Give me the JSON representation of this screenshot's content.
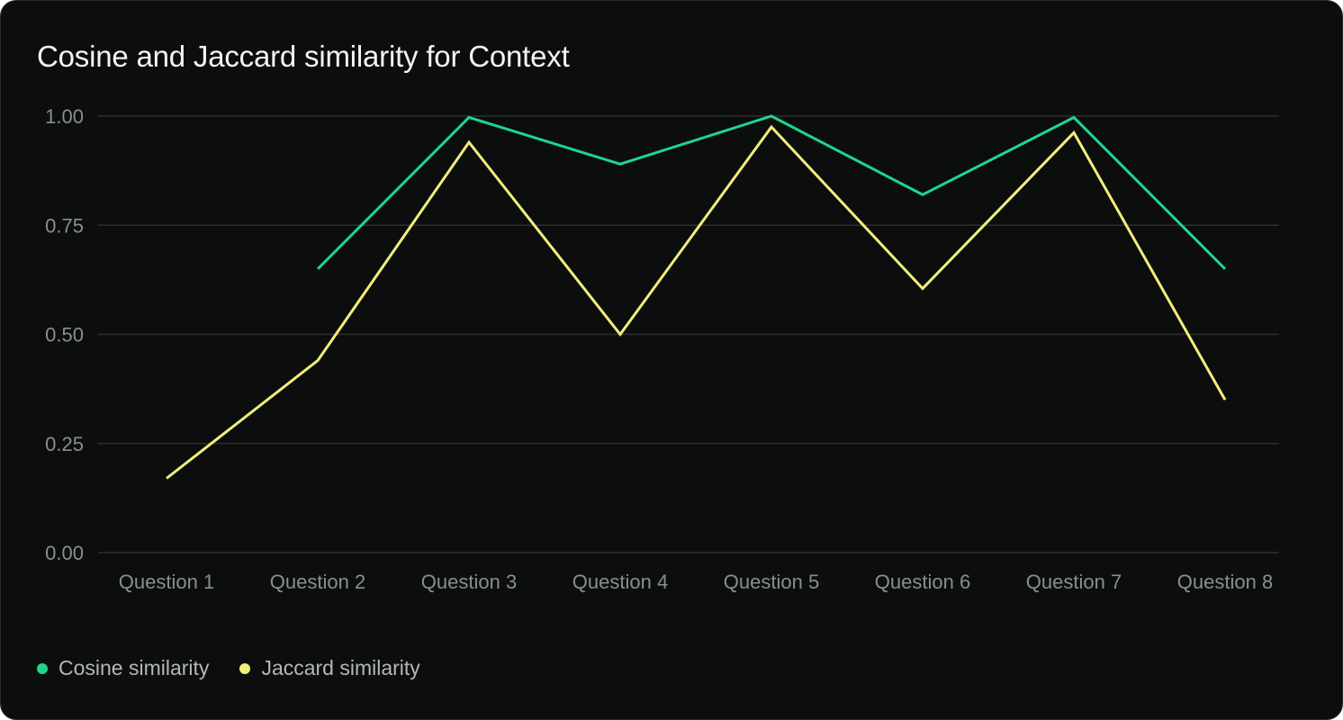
{
  "chart_data": {
    "type": "line",
    "title": "Cosine and Jaccard similarity for Context",
    "categories": [
      "Question 1",
      "Question 2",
      "Question 3",
      "Question 4",
      "Question 5",
      "Question 6",
      "Question 7",
      "Question 8"
    ],
    "ylim": [
      0,
      1
    ],
    "yticks": [
      "0.00",
      "0.25",
      "0.50",
      "0.75",
      "1.00"
    ],
    "grid": true,
    "legend_position": "bottom-left",
    "series": [
      {
        "name": "Cosine similarity",
        "color": "#1ed68e",
        "values": [
          null,
          0.65,
          0.997,
          0.89,
          1.0,
          0.82,
          0.997,
          0.65
        ]
      },
      {
        "name": "Jaccard similarity",
        "color": "#f2ee7c",
        "values": [
          0.17,
          0.44,
          0.94,
          0.5,
          0.975,
          0.605,
          0.962,
          0.35
        ]
      }
    ]
  }
}
